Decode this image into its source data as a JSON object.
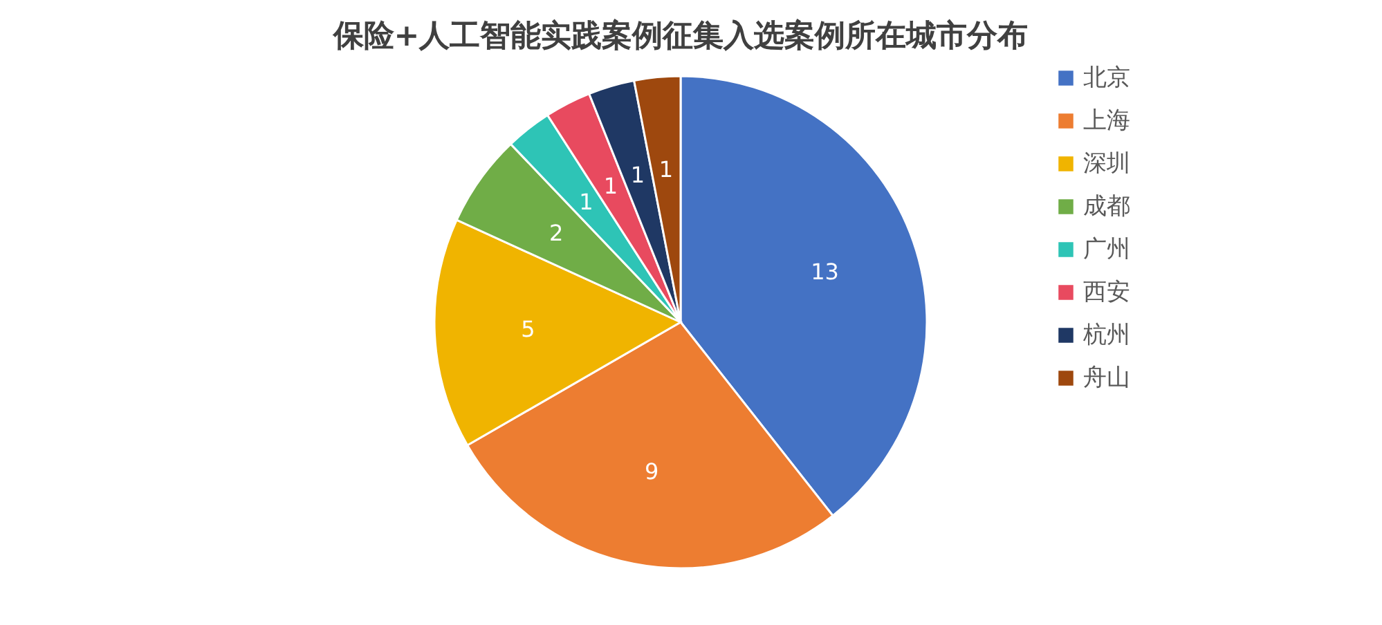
{
  "chart_data": {
    "type": "pie",
    "title": "保险+人工智能实践案例征集入选案例所在城市分布",
    "categories": [
      "北京",
      "上海",
      "深圳",
      "成都",
      "广州",
      "西安",
      "杭州",
      "舟山"
    ],
    "values": [
      13,
      9,
      5,
      2,
      1,
      1,
      1,
      1
    ],
    "colors": [
      "#4472c4",
      "#ed7d31",
      "#f0b400",
      "#70ad47",
      "#2ec4b6",
      "#e84a5f",
      "#1f3864",
      "#9e480e"
    ],
    "data_labels": true,
    "legend": "right"
  }
}
